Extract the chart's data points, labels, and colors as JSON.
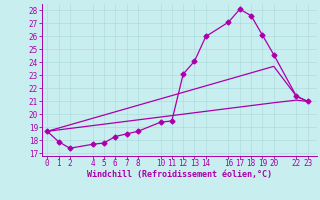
{
  "xlabel": "Windchill (Refroidissement éolien,°C)",
  "background_color": "#c8eef0",
  "grid_color": "#b0dde0",
  "line_color": "#aa00aa",
  "xlim": [
    -0.5,
    23.8
  ],
  "ylim": [
    16.8,
    28.5
  ],
  "xticks": [
    0,
    1,
    2,
    4,
    5,
    6,
    7,
    8,
    10,
    11,
    12,
    13,
    14,
    16,
    17,
    18,
    19,
    20,
    22,
    23
  ],
  "yticks": [
    17,
    18,
    19,
    20,
    21,
    22,
    23,
    24,
    25,
    26,
    27,
    28
  ],
  "line1_x": [
    0,
    1,
    2,
    4,
    5,
    6,
    7,
    8,
    10,
    11,
    12,
    13,
    14,
    16,
    17,
    18,
    19,
    20,
    22,
    23
  ],
  "line1_y": [
    18.7,
    17.9,
    17.4,
    17.7,
    17.8,
    18.3,
    18.5,
    18.7,
    19.4,
    19.5,
    23.1,
    24.1,
    26.0,
    27.1,
    28.1,
    27.6,
    26.1,
    24.6,
    21.4,
    21.0
  ],
  "line2_x": [
    0,
    20,
    22,
    23
  ],
  "line2_y": [
    18.7,
    23.7,
    21.4,
    21.0
  ],
  "line3_x": [
    0,
    20,
    22,
    23
  ],
  "line3_y": [
    18.7,
    20.9,
    21.1,
    21.0
  ],
  "marker_size": 2.5,
  "line_width": 0.9,
  "axis_fontsize": 6,
  "tick_fontsize": 5.5
}
